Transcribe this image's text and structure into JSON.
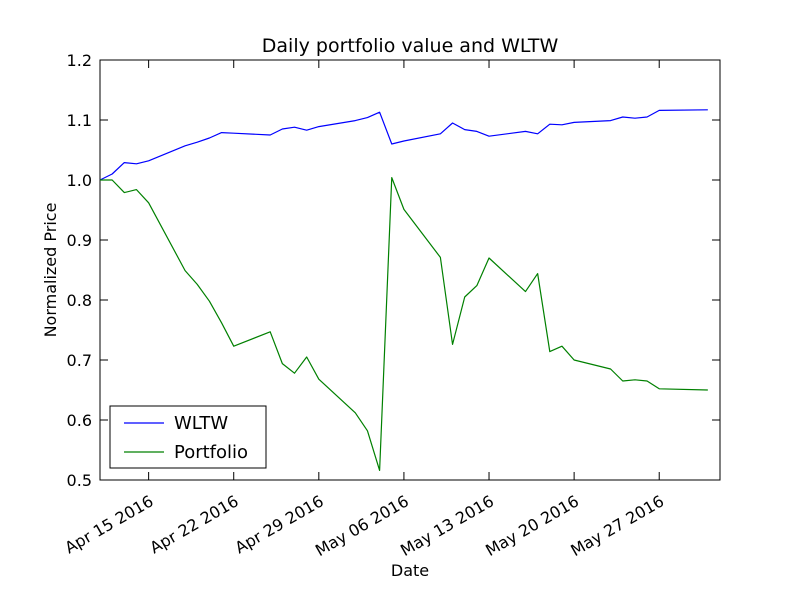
{
  "chart_data": {
    "type": "line",
    "title": "Daily portfolio value and WLTW",
    "xlabel": "Date",
    "ylabel": "Normalized Price",
    "xlim": [
      "2016-04-11",
      "2016-06-01"
    ],
    "ylim": [
      0.5,
      1.2
    ],
    "grid": false,
    "legend_position": "lower-left",
    "x_ticks": [
      {
        "date": "2016-04-15",
        "label": "Apr 15 2016"
      },
      {
        "date": "2016-04-22",
        "label": "Apr 22 2016"
      },
      {
        "date": "2016-04-29",
        "label": "Apr 29 2016"
      },
      {
        "date": "2016-05-06",
        "label": "May 06 2016"
      },
      {
        "date": "2016-05-13",
        "label": "May 13 2016"
      },
      {
        "date": "2016-05-20",
        "label": "May 20 2016"
      },
      {
        "date": "2016-05-27",
        "label": "May 27 2016"
      }
    ],
    "y_ticks": [
      "0.5",
      "0.6",
      "0.7",
      "0.8",
      "0.9",
      "1.0",
      "1.1",
      "1.2"
    ],
    "x": [
      "2016-04-11",
      "2016-04-12",
      "2016-04-13",
      "2016-04-14",
      "2016-04-15",
      "2016-04-18",
      "2016-04-19",
      "2016-04-20",
      "2016-04-21",
      "2016-04-22",
      "2016-04-25",
      "2016-04-26",
      "2016-04-27",
      "2016-04-28",
      "2016-04-29",
      "2016-05-02",
      "2016-05-03",
      "2016-05-04",
      "2016-05-05",
      "2016-05-06",
      "2016-05-09",
      "2016-05-10",
      "2016-05-11",
      "2016-05-12",
      "2016-05-13",
      "2016-05-16",
      "2016-05-17",
      "2016-05-18",
      "2016-05-19",
      "2016-05-20",
      "2016-05-23",
      "2016-05-24",
      "2016-05-25",
      "2016-05-26",
      "2016-05-27",
      "2016-05-31"
    ],
    "series": [
      {
        "name": "WLTW",
        "color": "#0000ff",
        "values": [
          1.0,
          1.01,
          1.029,
          1.027,
          1.032,
          1.057,
          1.063,
          1.07,
          1.079,
          1.078,
          1.075,
          1.085,
          1.088,
          1.083,
          1.089,
          1.099,
          1.104,
          1.113,
          1.06,
          1.065,
          1.077,
          1.095,
          1.084,
          1.081,
          1.073,
          1.081,
          1.077,
          1.093,
          1.092,
          1.096,
          1.099,
          1.105,
          1.103,
          1.105,
          1.116,
          1.117
        ]
      },
      {
        "name": "Portfolio",
        "color": "#008000",
        "values": [
          1.0,
          1.0,
          0.979,
          0.984,
          0.962,
          0.849,
          0.826,
          0.798,
          0.762,
          0.723,
          0.747,
          0.694,
          0.678,
          0.705,
          0.668,
          0.612,
          0.582,
          0.516,
          1.004,
          0.951,
          0.871,
          0.726,
          0.805,
          0.824,
          0.87,
          0.814,
          0.844,
          0.714,
          0.723,
          0.7,
          0.685,
          0.665,
          0.667,
          0.665,
          0.652,
          0.65
        ]
      }
    ]
  }
}
